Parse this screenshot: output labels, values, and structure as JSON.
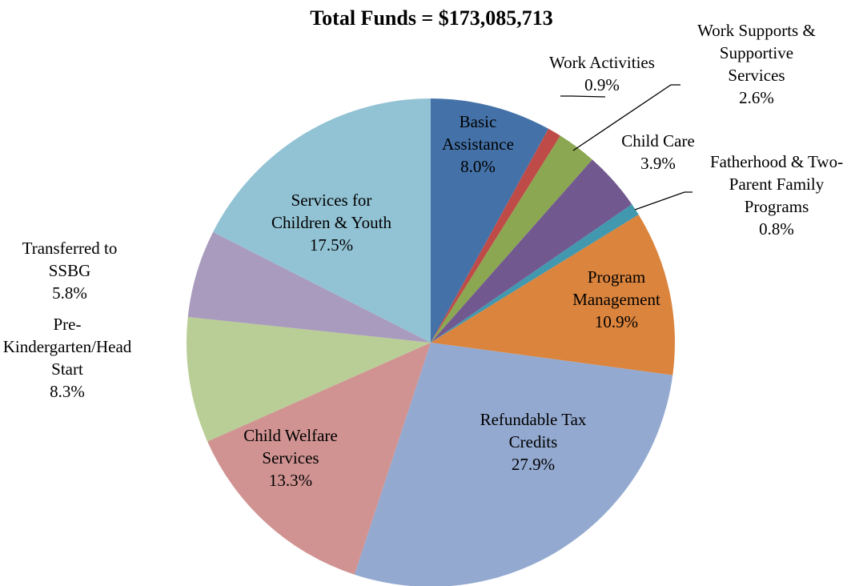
{
  "chart_data": {
    "type": "pie",
    "title": "Total Funds = $173,085,713",
    "slices": [
      {
        "name": "Basic Assistance",
        "label_lines": [
          "Basic",
          "Assistance"
        ],
        "pct_label": "8.0%",
        "value": 8.0,
        "color": "#4472A8"
      },
      {
        "name": "Work Activities",
        "label_lines": [
          "Work Activities"
        ],
        "pct_label": "0.9%",
        "value": 0.9,
        "color": "#BE4B48"
      },
      {
        "name": "Work Supports & Supportive Services",
        "label_lines": [
          "Work Supports &",
          "Supportive",
          "Services"
        ],
        "pct_label": "2.6%",
        "value": 2.6,
        "color": "#8BA751"
      },
      {
        "name": "Child Care",
        "label_lines": [
          "Child Care"
        ],
        "pct_label": "3.9%",
        "value": 3.9,
        "color": "#71588F"
      },
      {
        "name": "Fatherhood & Two-Parent Family Programs",
        "label_lines": [
          "Fatherhood & Two-",
          "Parent Family",
          "Programs"
        ],
        "pct_label": "0.8%",
        "value": 0.8,
        "color": "#4198AF"
      },
      {
        "name": "Program Management",
        "label_lines": [
          "Program",
          "Management"
        ],
        "pct_label": "10.9%",
        "value": 10.9,
        "color": "#DB843D"
      },
      {
        "name": "Refundable Tax Credits",
        "label_lines": [
          "Refundable Tax",
          "Credits"
        ],
        "pct_label": "27.9%",
        "value": 27.9,
        "color": "#93A9D0"
      },
      {
        "name": "Child Welfare Services",
        "label_lines": [
          "Child Welfare",
          "Services"
        ],
        "pct_label": "13.3%",
        "value": 13.3,
        "color": "#D09392"
      },
      {
        "name": "Pre-Kindergarten/Head Start",
        "label_lines": [
          "Pre-",
          "Kindergarten/Head",
          "Start"
        ],
        "pct_label": "8.3%",
        "value": 8.3,
        "color": "#B9CD96"
      },
      {
        "name": "Transferred to SSBG",
        "label_lines": [
          "Transferred to",
          "SSBG"
        ],
        "pct_label": "5.8%",
        "value": 5.8,
        "color": "#A99BBD"
      },
      {
        "name": "Services for Children & Youth",
        "label_lines": [
          "Services for",
          "Children & Youth"
        ],
        "pct_label": "17.5%",
        "value": 17.5,
        "color": "#92C3D4"
      }
    ]
  }
}
